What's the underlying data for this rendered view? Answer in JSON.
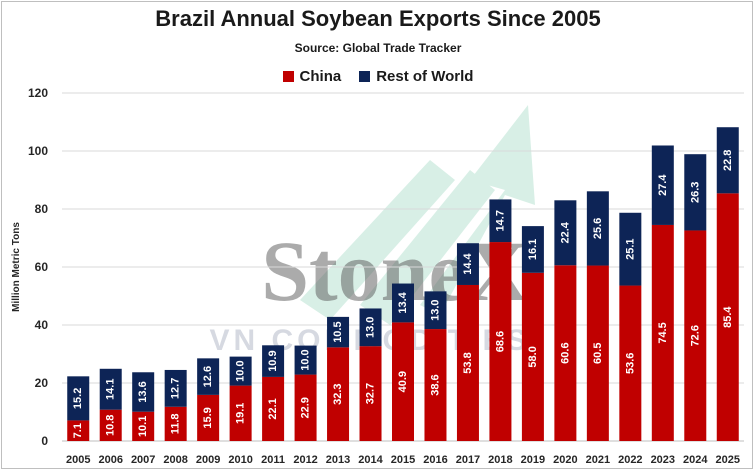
{
  "chart_data": {
    "type": "bar",
    "stacked": true,
    "title": "Brazil Annual Soybean Exports Since 2005",
    "subtitle": "Source: Global Trade Tracker",
    "xlabel": "",
    "ylabel": "Million Metric Tons",
    "ylim": [
      0,
      120
    ],
    "yticks": [
      0,
      20,
      40,
      60,
      80,
      100,
      120
    ],
    "grid": true,
    "legend_position": "top-center",
    "categories": [
      "2005",
      "2006",
      "2007",
      "2008",
      "2009",
      "2010",
      "2011",
      "2012",
      "2013",
      "2014",
      "2015",
      "2016",
      "2017",
      "2018",
      "2019",
      "2020",
      "2021",
      "2022",
      "2023",
      "2024",
      "2025"
    ],
    "series": [
      {
        "name": "China",
        "color": "#c00000",
        "values": [
          7.1,
          10.8,
          10.1,
          11.8,
          15.9,
          19.1,
          22.1,
          22.9,
          32.3,
          32.7,
          40.9,
          38.6,
          53.8,
          68.6,
          58.0,
          60.6,
          60.5,
          53.6,
          74.5,
          72.6,
          85.4
        ],
        "labels": [
          "7.1",
          "10.8",
          "10.1",
          "11.8",
          "15.9",
          "19.1",
          "22.1",
          "22.9",
          "32.3",
          "32.7",
          "40.9",
          "38.6",
          "53.8",
          "68.6",
          "58.0",
          "60.6",
          "60.5",
          "53.6",
          "74.5",
          "72.6",
          "85.4"
        ]
      },
      {
        "name": "Rest of World",
        "color": "#0d2456",
        "values": [
          15.2,
          14.1,
          13.6,
          12.7,
          12.6,
          10.0,
          10.9,
          10.0,
          10.5,
          13.0,
          13.4,
          13.0,
          14.4,
          14.7,
          16.1,
          22.4,
          25.6,
          25.1,
          27.4,
          26.3,
          22.8
        ],
        "labels": [
          "15.2",
          "14.1",
          "13.6",
          "12.7",
          "12.6",
          "10.0",
          "10.9",
          "10.0",
          "10.5",
          "13.0",
          "13.4",
          "13.0",
          "14.4",
          "14.7",
          "16.1",
          "22.4",
          "25.6",
          "25.1",
          "27.4",
          "26.3",
          "22.8"
        ]
      }
    ]
  },
  "watermark": {
    "logo_text": "StoneX",
    "sub_text": "VN COMMODITIES"
  }
}
